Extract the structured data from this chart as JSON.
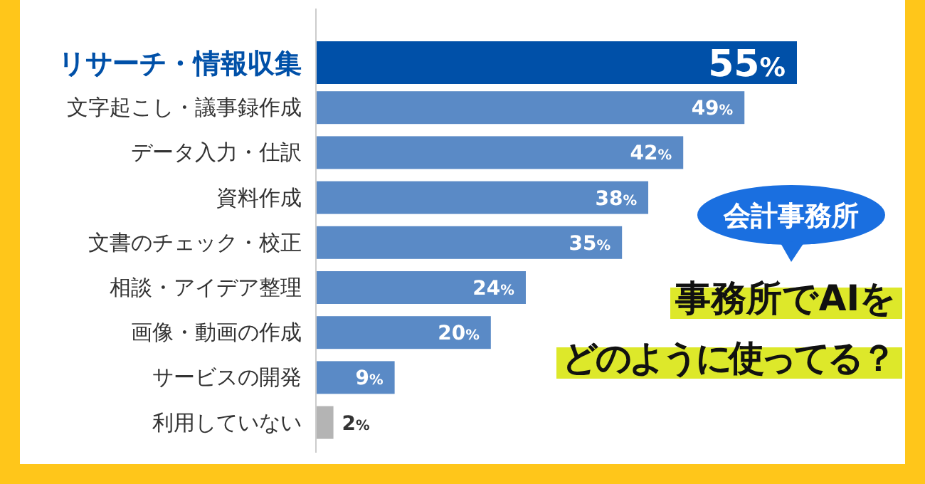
{
  "chart_data": {
    "type": "bar",
    "orientation": "horizontal",
    "title": "事務所でAIをどのように使ってる？",
    "subtitle": "会計事務所",
    "categories": [
      "リサーチ・情報収集",
      "文字起こし・議事録作成",
      "データ入力・仕訳",
      "資料作成",
      "文書のチェック・校正",
      "相談・アイデア整理",
      "画像・動画の作成",
      "サービスの開発",
      "利用していない"
    ],
    "values": [
      55,
      49,
      42,
      38,
      35,
      24,
      20,
      9,
      2
    ],
    "colors": [
      "#0050a8",
      "#5a8ac6",
      "#5a8ac6",
      "#5a8ac6",
      "#5a8ac6",
      "#5a8ac6",
      "#5a8ac6",
      "#5a8ac6",
      "#b4b4b4"
    ],
    "value_labels": [
      "55%",
      "49%",
      "42%",
      "38%",
      "35%",
      "24%",
      "20%",
      "9%",
      "2%"
    ]
  }
}
